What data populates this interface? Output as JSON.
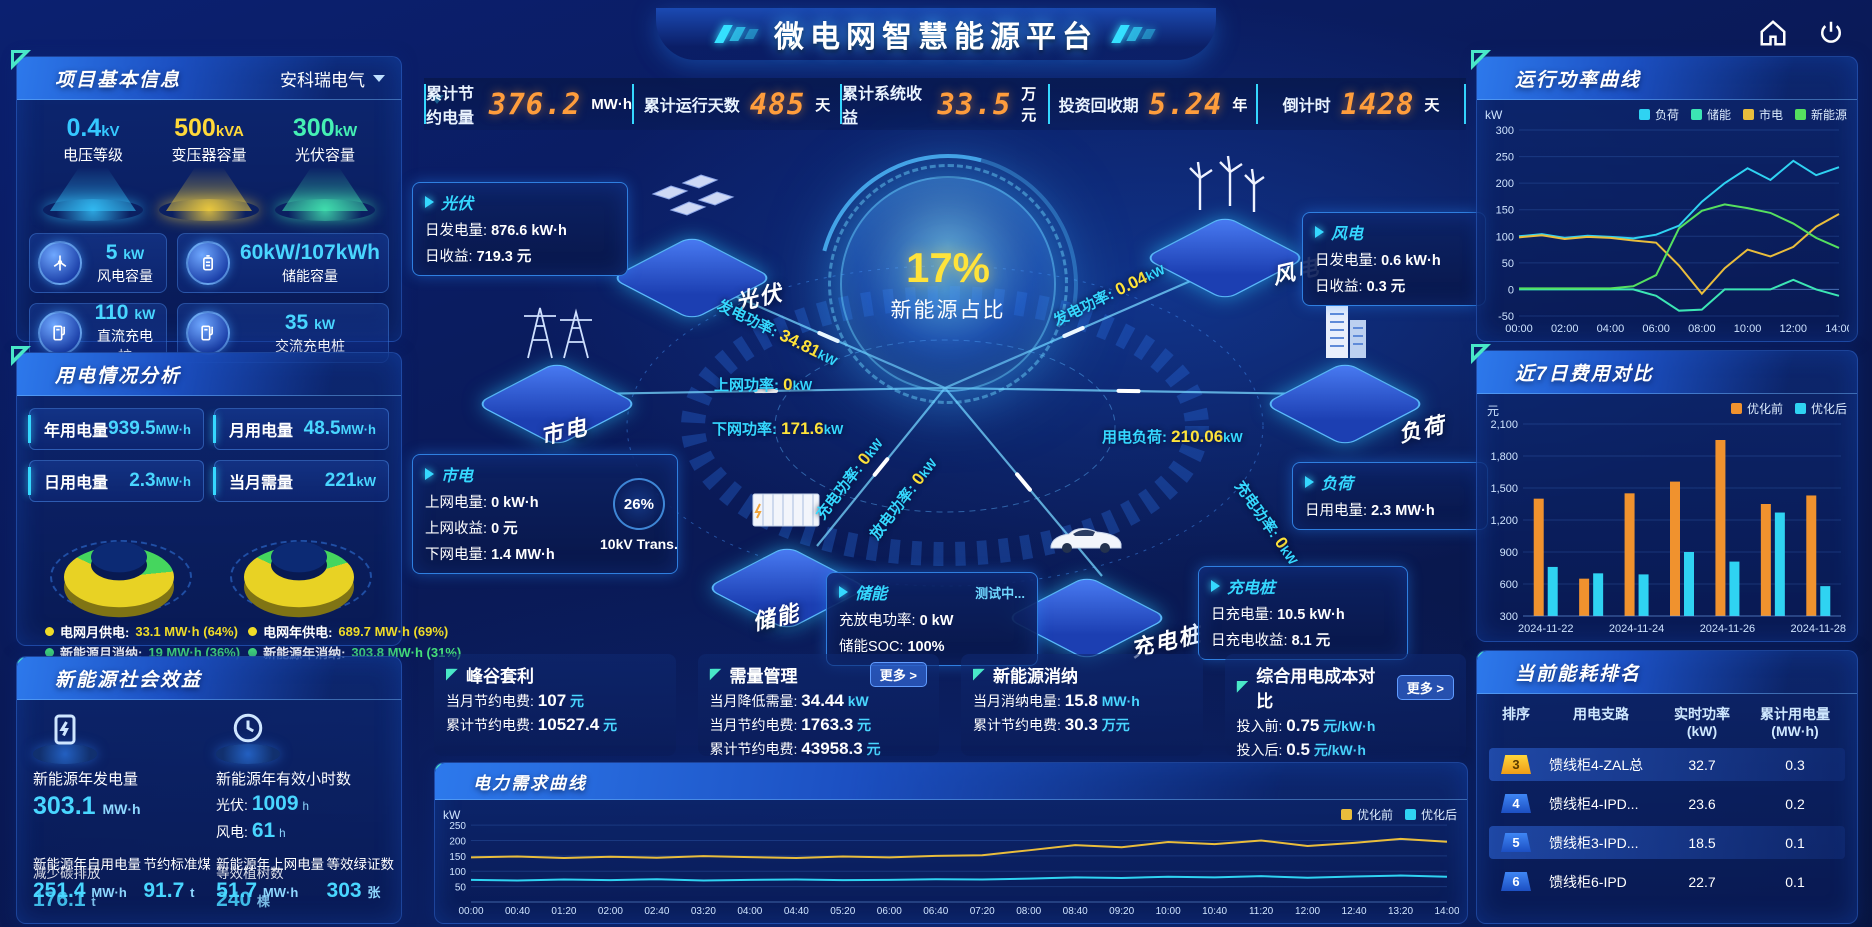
{
  "header": {
    "title": "微电网智慧能源平台"
  },
  "kpi_bar": [
    {
      "label": "累计节约电量",
      "value": "376.2",
      "unit": "MW·h"
    },
    {
      "label": "累计运行天数",
      "value": "485",
      "unit": "天"
    },
    {
      "label": "累计系统收益",
      "value": "33.5",
      "unit": "万元"
    },
    {
      "label": "投资回收期",
      "value": "5.24",
      "unit": "年"
    },
    {
      "label": "倒计时",
      "value": "1428",
      "unit": "天"
    }
  ],
  "project": {
    "title": "项目基本信息",
    "company": "安科瑞电气",
    "spotlights": [
      {
        "value": "0.4",
        "unit": "kV",
        "label": "电压等级",
        "color": "#35c8ff"
      },
      {
        "value": "500",
        "unit": "kVA",
        "label": "变压器容量",
        "color": "#ffd83a"
      },
      {
        "value": "300",
        "unit": "kW",
        "label": "光伏容量",
        "color": "#45f0b4"
      }
    ],
    "cards": [
      {
        "icon": "wind-turbine-icon",
        "value": "5",
        "unit": "kW",
        "label": "风电容量"
      },
      {
        "icon": "battery-icon",
        "value": "60kW/107kWh",
        "unit": "",
        "label": "储能容量"
      },
      {
        "icon": "charger-icon",
        "value": "110",
        "unit": "kW",
        "label": "直流充电桩"
      },
      {
        "icon": "charger-icon",
        "value": "35",
        "unit": "kW",
        "label": "交流充电桩"
      }
    ]
  },
  "usage": {
    "title": "用电情况分析",
    "stats": [
      {
        "label": "年用电量",
        "value": "939.5",
        "unit": "MW·h"
      },
      {
        "label": "月用电量",
        "value": "48.5",
        "unit": "MW·h"
      },
      {
        "label": "日用电量",
        "value": "2.3",
        "unit": "MW·h"
      },
      {
        "label": "当月需量",
        "value": "221",
        "unit": "kW"
      }
    ],
    "donuts": [
      {
        "grid_pct": 64,
        "green_pct": 36,
        "legend": [
          {
            "color": "#f0dc28",
            "label": "电网月供电:",
            "value": "33.1 MW·h (64%)",
            "value_color": "#f0dc28"
          },
          {
            "color": "#45e07a",
            "label": "新能源月消纳:",
            "value": "19 MW·h (36%)",
            "value_color": "#45e07a"
          }
        ]
      },
      {
        "grid_pct": 69,
        "green_pct": 31,
        "legend": [
          {
            "color": "#f0dc28",
            "label": "电网年供电:",
            "value": "689.7 MW·h (69%)",
            "value_color": "#f0dc28"
          },
          {
            "color": "#45e07a",
            "label": "新能源年消纳:",
            "value": "303.8 MW·h (31%)",
            "value_color": "#45e07a"
          }
        ]
      }
    ]
  },
  "benefit": {
    "title": "新能源社会效益",
    "items": [
      {
        "icon": "flash-icon",
        "label": "新能源年发电量",
        "value": "303.1",
        "unit": "MW·h"
      },
      {
        "icon": "clock-icon",
        "label": "新能源年有效小时数",
        "rows": [
          {
            "k": "光伏:",
            "v": "1009",
            "u": "h"
          },
          {
            "k": "风电:",
            "v": "61",
            "u": "h"
          }
        ]
      }
    ],
    "bottom": [
      {
        "labels": [
          "新能源年自用电量",
          "减少碳排放"
        ],
        "values": [
          [
            "251.4",
            "MW·h"
          ],
          [
            "176.1",
            "t"
          ]
        ]
      },
      {
        "labels": [
          "节约标准煤"
        ],
        "values": [
          [
            "91.7",
            "t"
          ]
        ]
      },
      {
        "labels": [
          "新能源年上网电量",
          "等效植树数"
        ],
        "values": [
          [
            "51.7",
            "MW·h"
          ],
          [
            "240",
            "棵"
          ]
        ]
      },
      {
        "labels": [
          "等效绿证数"
        ],
        "values": [
          [
            "303",
            "张"
          ]
        ]
      }
    ]
  },
  "scene": {
    "center": {
      "percent": "17%",
      "label": "新能源占比"
    },
    "transformer": {
      "percent": "26%",
      "label": "10kV Trans."
    },
    "nodes": [
      {
        "id": "pv",
        "name": "光伏",
        "icon": "solar-panels-icon"
      },
      {
        "id": "wind",
        "name": "风电",
        "icon": "wind-farm-icon"
      },
      {
        "id": "grid",
        "name": "市电",
        "icon": "power-towers-icon"
      },
      {
        "id": "load",
        "name": "负荷",
        "icon": "building-icon"
      },
      {
        "id": "storage",
        "name": "储能",
        "icon": "battery-container-icon"
      },
      {
        "id": "charger",
        "name": "充电桩",
        "icon": "ev-car-icon"
      }
    ],
    "info_boxes": [
      {
        "id": "pv",
        "title": "光伏",
        "rows": [
          [
            "日发电量:",
            "876.6 kW·h"
          ],
          [
            "日收益:",
            "719.3 元"
          ]
        ]
      },
      {
        "id": "grid",
        "title": "市电",
        "rows": [
          [
            "上网电量:",
            "0 kW·h"
          ],
          [
            "上网收益:",
            "0 元"
          ],
          [
            "下网电量:",
            "1.4 MW·h"
          ]
        ]
      },
      {
        "id": "wind",
        "title": "风电",
        "rows": [
          [
            "日发电量:",
            "0.6 kW·h"
          ],
          [
            "日收益:",
            "0.3 元"
          ]
        ]
      },
      {
        "id": "load",
        "title": "负荷",
        "rows": [
          [
            "日用电量:",
            "2.3 MW·h"
          ]
        ]
      },
      {
        "id": "storage",
        "title": "储能",
        "badge": "测试中...",
        "rows": [
          [
            "充放电功率:",
            "0 kW"
          ],
          [
            "储能SOC:",
            "100%"
          ]
        ]
      },
      {
        "id": "charger",
        "title": "充电桩",
        "rows": [
          [
            "日充电量:",
            "10.5 kW·h"
          ],
          [
            "日充电收益:",
            "8.1 元"
          ]
        ]
      }
    ],
    "flows": [
      {
        "id": "pv-gen",
        "label": "发电功率:",
        "value": "34.81",
        "unit": "kW"
      },
      {
        "id": "to-grid",
        "label": "上网功率:",
        "value": "0",
        "unit": "kW"
      },
      {
        "id": "from-grid",
        "label": "下网功率:",
        "value": "171.6",
        "unit": "kW"
      },
      {
        "id": "wind-gen",
        "label": "发电功率:",
        "value": "0.04",
        "unit": "kW"
      },
      {
        "id": "load-power",
        "label": "用电负荷:",
        "value": "210.06",
        "unit": "kW"
      },
      {
        "id": "charge",
        "label": "充电功率:",
        "value": "0",
        "unit": "kW"
      },
      {
        "id": "discharge",
        "label": "放电功率:",
        "value": "0",
        "unit": "kW"
      },
      {
        "id": "ev-charge",
        "label": "充电功率:",
        "value": "0",
        "unit": "kW"
      }
    ]
  },
  "bottom_cards": [
    {
      "title": "峰谷套利",
      "more": "",
      "rows": [
        [
          "当月节约电费:",
          "107",
          "元"
        ],
        [
          "累计节约电费:",
          "10527.4",
          "元"
        ]
      ]
    },
    {
      "title": "需量管理",
      "more": "更多 >",
      "rows": [
        [
          "当月降低需量:",
          "34.44",
          "kW"
        ],
        [
          "当月节约电费:",
          "1763.3",
          "元"
        ],
        [
          "累计节约电费:",
          "43958.3",
          "元"
        ]
      ]
    },
    {
      "title": "新能源消纳",
      "more": "",
      "rows": [
        [
          "当月消纳电量:",
          "15.8",
          "MW·h"
        ],
        [
          "累计节约电费:",
          "30.3",
          "万元"
        ]
      ]
    },
    {
      "title": "综合用电成本对比",
      "more": "更多 >",
      "rows": [
        [
          "投入前:",
          "0.75",
          "元/kW·h"
        ],
        [
          "投入后:",
          "0.5",
          "元/kW·h"
        ]
      ]
    }
  ],
  "ranking": {
    "title": "当前能耗排名",
    "columns": [
      "排序",
      "用电支路",
      "实时功率|(kW)",
      "累计用电量|(MW·h)"
    ],
    "rows": [
      {
        "rank": "3",
        "branch": "馈线柜4-ZAL总",
        "power": "32.7",
        "energy": "0.3",
        "highlight": true,
        "badge": "yellow"
      },
      {
        "rank": "4",
        "branch": "馈线柜4-IPD...",
        "power": "23.6",
        "energy": "0.2",
        "highlight": false,
        "badge": "blue"
      },
      {
        "rank": "5",
        "branch": "馈线柜3-IPD...",
        "power": "18.5",
        "energy": "0.1",
        "highlight": true,
        "badge": "blue"
      },
      {
        "rank": "6",
        "branch": "馈线柜6-IPD",
        "power": "22.7",
        "energy": "0.1",
        "highlight": false,
        "badge": "blue"
      }
    ]
  },
  "chart_data": [
    {
      "id": "power-curve",
      "type": "line",
      "title": "运行功率曲线",
      "ylabel": "kW",
      "ylim": [
        -50,
        300
      ],
      "yticks": [
        300,
        250,
        200,
        150,
        100,
        50,
        0,
        -50
      ],
      "x": [
        "00:00",
        "01:00",
        "02:00",
        "03:00",
        "04:00",
        "05:00",
        "06:00",
        "07:00",
        "08:00",
        "09:00",
        "10:00",
        "11:00",
        "12:00",
        "13:00",
        "14:00"
      ],
      "xticks": [
        "00:00",
        "02:00",
        "04:00",
        "06:00",
        "08:00",
        "10:00",
        "12:00",
        "14:00"
      ],
      "grid": true,
      "legend_position": "top-right",
      "series": [
        {
          "name": "负荷",
          "color": "#2fd3f2",
          "values": [
            100,
            104,
            97,
            101,
            99,
            96,
            103,
            120,
            165,
            200,
            228,
            206,
            242,
            215,
            230
          ]
        },
        {
          "name": "储能",
          "color": "#3ce6b4",
          "values": [
            0,
            0,
            0,
            0,
            0,
            0,
            -12,
            -40,
            -38,
            0,
            0,
            0,
            18,
            0,
            -12
          ]
        },
        {
          "name": "市电",
          "color": "#e9bd3c",
          "values": [
            98,
            102,
            95,
            99,
            97,
            92,
            88,
            45,
            -8,
            40,
            75,
            62,
            80,
            118,
            142
          ]
        },
        {
          "name": "新能源",
          "color": "#55e05f",
          "values": [
            2,
            2,
            2,
            2,
            2,
            6,
            27,
            115,
            148,
            160,
            153,
            144,
            124,
            97,
            78
          ]
        }
      ]
    },
    {
      "id": "cost-compare",
      "type": "bar",
      "title": "近7日费用对比",
      "ylabel": "元",
      "ylim": [
        300,
        2100
      ],
      "yticks": [
        2100,
        1800,
        1500,
        1200,
        900,
        600,
        300
      ],
      "categories": [
        "2024-11-22",
        "2024-11-23",
        "2024-11-24",
        "2024-11-25",
        "2024-11-26",
        "2024-11-27",
        "2024-11-28"
      ],
      "xticks": [
        "2024-11-22",
        "2024-11-24",
        "2024-11-26",
        "2024-11-28"
      ],
      "grid": true,
      "legend_position": "top-right",
      "series": [
        {
          "name": "优化前",
          "color": "#f0922e",
          "values": [
            1400,
            650,
            1450,
            1560,
            1950,
            1350,
            1430
          ]
        },
        {
          "name": "优化后",
          "color": "#2fd3f2",
          "values": [
            760,
            700,
            690,
            900,
            810,
            1270,
            580
          ]
        }
      ]
    },
    {
      "id": "demand-curve",
      "type": "line",
      "title": "电力需求曲线",
      "ylabel": "kW",
      "ylim": [
        0,
        260
      ],
      "yticks": [
        250,
        200,
        150,
        100,
        50
      ],
      "x": [
        "00:00",
        "00:40",
        "01:20",
        "02:00",
        "02:40",
        "03:20",
        "04:00",
        "04:40",
        "05:20",
        "06:00",
        "06:40",
        "07:20",
        "08:00",
        "08:40",
        "09:20",
        "10:00",
        "10:40",
        "11:20",
        "12:00",
        "12:40",
        "13:20",
        "14:00"
      ],
      "xticks": [
        "00:00",
        "00:40",
        "01:20",
        "02:00",
        "02:40",
        "03:20",
        "04:00",
        "04:40",
        "05:20",
        "06:00",
        "06:40",
        "07:20",
        "08:00",
        "08:40",
        "09:20",
        "10:00",
        "10:40",
        "11:20",
        "12:00",
        "12:40",
        "13:20",
        "14:00"
      ],
      "grid": true,
      "legend_position": "top-right",
      "series": [
        {
          "name": "优化前",
          "color": "#e9bd3c",
          "values": [
            145,
            148,
            143,
            147,
            144,
            149,
            146,
            143,
            148,
            145,
            150,
            152,
            168,
            185,
            178,
            195,
            188,
            200,
            182,
            192,
            205,
            196
          ]
        },
        {
          "name": "优化后",
          "color": "#2fd3f2",
          "values": [
            72,
            70,
            73,
            71,
            74,
            70,
            72,
            73,
            71,
            72,
            74,
            73,
            76,
            80,
            78,
            82,
            80,
            84,
            79,
            83,
            86,
            82
          ]
        }
      ]
    }
  ]
}
